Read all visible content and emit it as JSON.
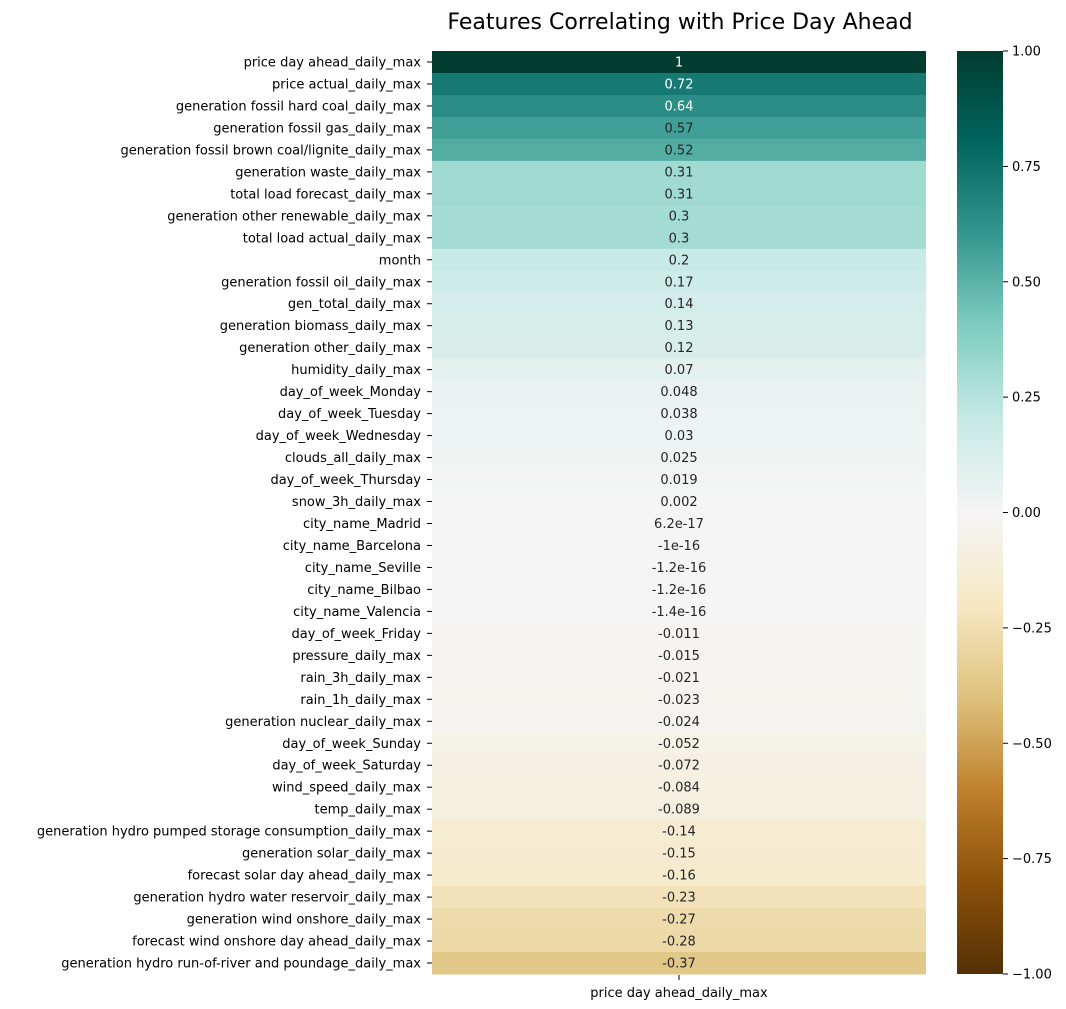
{
  "chart_data": {
    "type": "heatmap",
    "title": "Features Correlating with Price Day Ahead",
    "column": "price day ahead_daily_max",
    "rows": [
      "price day ahead_daily_max",
      "price actual_daily_max",
      "generation fossil hard coal_daily_max",
      "generation fossil gas_daily_max",
      "generation fossil brown coal/lignite_daily_max",
      "generation waste_daily_max",
      "total load forecast_daily_max",
      "generation other renewable_daily_max",
      "total load actual_daily_max",
      "month",
      "generation fossil oil_daily_max",
      "gen_total_daily_max",
      "generation biomass_daily_max",
      "generation other_daily_max",
      "humidity_daily_max",
      "day_of_week_Monday",
      "day_of_week_Tuesday",
      "day_of_week_Wednesday",
      "clouds_all_daily_max",
      "day_of_week_Thursday",
      "snow_3h_daily_max",
      "city_name_Madrid",
      "city_name_Barcelona",
      "city_name_Seville",
      "city_name_Bilbao",
      "city_name_Valencia",
      "day_of_week_Friday",
      "pressure_daily_max",
      "rain_3h_daily_max",
      "rain_1h_daily_max",
      "generation nuclear_daily_max",
      "day_of_week_Sunday",
      "day_of_week_Saturday",
      "wind_speed_daily_max",
      "temp_daily_max",
      "generation hydro pumped storage consumption_daily_max",
      "generation solar_daily_max",
      "forecast solar day ahead_daily_max",
      "generation hydro water reservoir_daily_max",
      "generation wind onshore_daily_max",
      "forecast wind onshore day ahead_daily_max",
      "generation hydro run-of-river and poundage_daily_max"
    ],
    "values": [
      1,
      0.72,
      0.64,
      0.57,
      0.52,
      0.31,
      0.31,
      0.3,
      0.3,
      0.2,
      0.17,
      0.14,
      0.13,
      0.12,
      0.07,
      0.048,
      0.038,
      0.03,
      0.025,
      0.019,
      0.002,
      6.2e-17,
      -1e-16,
      -1.2e-16,
      -1.2e-16,
      -1.4e-16,
      -0.011,
      -0.015,
      -0.021,
      -0.023,
      -0.024,
      -0.052,
      -0.072,
      -0.084,
      -0.089,
      -0.14,
      -0.15,
      -0.16,
      -0.23,
      -0.27,
      -0.28,
      -0.37
    ],
    "value_labels": [
      "1",
      "0.72",
      "0.64",
      "0.57",
      "0.52",
      "0.31",
      "0.31",
      "0.3",
      "0.3",
      "0.2",
      "0.17",
      "0.14",
      "0.13",
      "0.12",
      "0.07",
      "0.048",
      "0.038",
      "0.03",
      "0.025",
      "0.019",
      "0.002",
      "6.2e-17",
      "-1e-16",
      "-1.2e-16",
      "-1.2e-16",
      "-1.4e-16",
      "-0.011",
      "-0.015",
      "-0.021",
      "-0.023",
      "-0.024",
      "-0.052",
      "-0.072",
      "-0.084",
      "-0.089",
      "-0.14",
      "-0.15",
      "-0.16",
      "-0.23",
      "-0.27",
      "-0.28",
      "-0.37"
    ],
    "colorbar": {
      "range": [
        -1.0,
        1.0
      ],
      "ticks": [
        1.0,
        0.75,
        0.5,
        0.25,
        0.0,
        -0.25,
        -0.5,
        -0.75,
        -1.0
      ],
      "tick_labels": [
        "1.00",
        "0.75",
        "0.50",
        "0.25",
        "0.00",
        "−0.25",
        "−0.50",
        "−0.75",
        "−1.00"
      ],
      "colormap": "BrBG",
      "colormap_stops": [
        "#543005",
        "#8c510a",
        "#bf812d",
        "#dfc27d",
        "#f6e8c3",
        "#f5f5f5",
        "#c7eae5",
        "#80cdc1",
        "#35978f",
        "#01665e",
        "#003c30"
      ]
    }
  }
}
